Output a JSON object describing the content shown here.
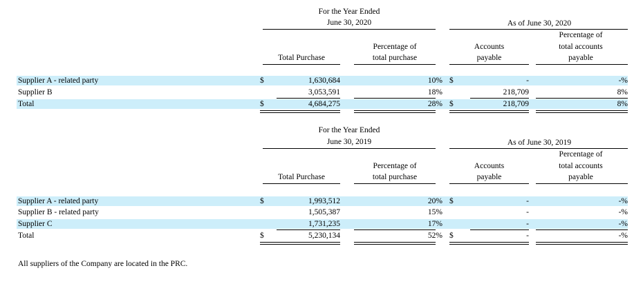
{
  "table_2020": {
    "header_year_line1": "For the Year Ended",
    "header_year_line2": "June 30, 2020",
    "header_asof": "As of June 30, 2020",
    "col_total_purchase": "Total Purchase",
    "col_pct_purchase_1": "Percentage of",
    "col_pct_purchase_2": "total purchase",
    "col_ap_1": "Accounts",
    "col_ap_2": "payable",
    "col_pct_ap_1": "Percentage of",
    "col_pct_ap_2": "total accounts",
    "col_pct_ap_3": "payable",
    "rows": [
      {
        "label": "Supplier A - related party",
        "cur1": "$",
        "purchase": "1,630,684",
        "pct": "10%",
        "cur2": "$",
        "ap": "-",
        "pct_ap": "-%"
      },
      {
        "label": "Supplier B",
        "cur1": "",
        "purchase": "3,053,591",
        "pct": "18%",
        "cur2": "",
        "ap": "218,709",
        "pct_ap": "8%"
      },
      {
        "label": "Total",
        "cur1": "$",
        "purchase": "4,684,275",
        "pct": "28%",
        "cur2": "$",
        "ap": "218,709",
        "pct_ap": "8%"
      }
    ]
  },
  "table_2019": {
    "header_year_line1": "For the Year Ended",
    "header_year_line2": "June 30, 2019",
    "header_asof": "As of June 30, 2019",
    "col_total_purchase": "Total Purchase",
    "col_pct_purchase_1": "Percentage of",
    "col_pct_purchase_2": "total purchase",
    "col_ap_1": "Accounts",
    "col_ap_2": "payable",
    "col_pct_ap_1": "Percentage of",
    "col_pct_ap_2": "total accounts",
    "col_pct_ap_3": "payable",
    "rows": [
      {
        "label": "Supplier A - related party",
        "cur1": "$",
        "purchase": "1,993,512",
        "pct": "20%",
        "cur2": "$",
        "ap": "-",
        "pct_ap": "-%"
      },
      {
        "label": "Supplier B - related party",
        "cur1": "",
        "purchase": "1,505,387",
        "pct": "15%",
        "cur2": "",
        "ap": "-",
        "pct_ap": "-%"
      },
      {
        "label": "Supplier C",
        "cur1": "",
        "purchase": "1,731,235",
        "pct": "17%",
        "cur2": "",
        "ap": "-",
        "pct_ap": "-%"
      },
      {
        "label": "Total",
        "cur1": "$",
        "purchase": "5,230,134",
        "pct": "52%",
        "cur2": "$",
        "ap": "-",
        "pct_ap": "-%"
      }
    ]
  },
  "footnote": "All suppliers of the Company are located in the PRC.",
  "colors": {
    "row_highlight": "#cdeefa"
  }
}
